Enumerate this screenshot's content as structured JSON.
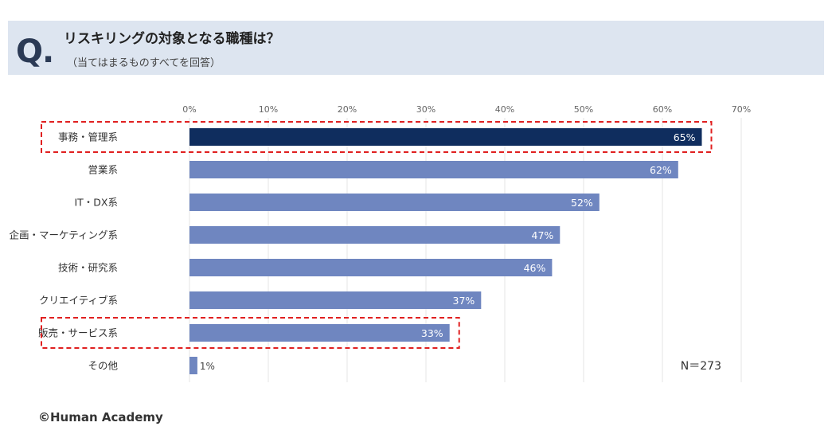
{
  "header": {
    "mark": "Q.",
    "title": "リスキリングの対象となる職種は？",
    "subtitle": "（当てはまるものすべてを回答）"
  },
  "chart_data": {
    "type": "bar",
    "orientation": "horizontal",
    "categories": [
      "事務・管理系",
      "営業系",
      "IT・DX系",
      "企画・マーケティング系",
      "技術・研究系",
      "クリエイティブ系",
      "販売・サービス系",
      "その他"
    ],
    "values": [
      65,
      62,
      52,
      47,
      46,
      37,
      33,
      1
    ],
    "data_labels": [
      "65%",
      "62%",
      "52%",
      "47%",
      "46%",
      "37%",
      "33%",
      "1%"
    ],
    "xlim": [
      0,
      70
    ],
    "ticks": [
      0,
      10,
      20,
      30,
      40,
      50,
      60,
      70
    ],
    "tick_labels": [
      "0%",
      "10%",
      "20%",
      "30%",
      "40%",
      "50%",
      "60%",
      "70%"
    ],
    "grid": true,
    "highlighted": [
      "事務・管理系",
      "販売・サービス系"
    ],
    "annotation": "N＝273",
    "colors": {
      "bar": "#6f86c0",
      "highlight_bar": "#0f2d5e",
      "grid": "#e6e6e6",
      "highlight_box": "#e02020"
    }
  },
  "footer": {
    "copyright": "©Human Academy"
  }
}
